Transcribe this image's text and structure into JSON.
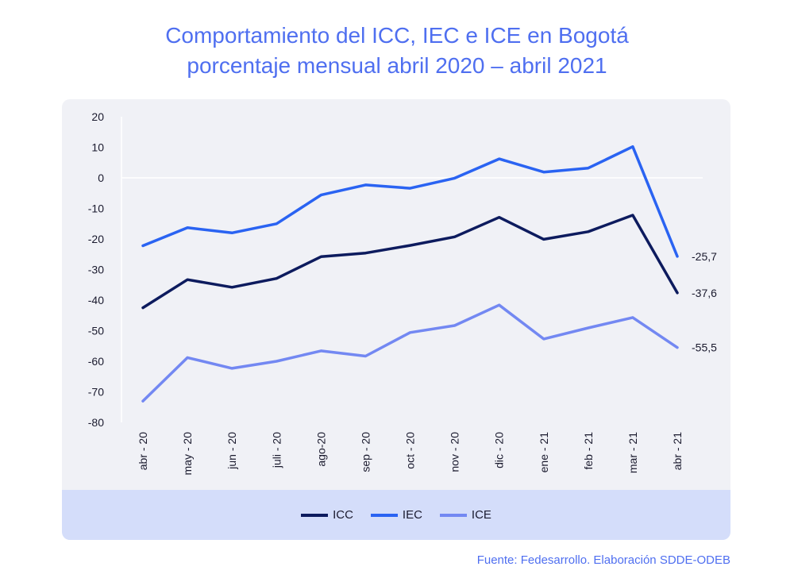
{
  "chart_data": {
    "type": "line",
    "title": "Comportamiento del ICC, IEC e ICE en Bogotá",
    "subtitle": "porcentaje mensual abril 2020 – abril 2021",
    "categories": [
      "abr - 20",
      "may - 20",
      "jun - 20",
      "juli - 20",
      "ago-20",
      "sep - 20",
      "oct - 20",
      "nov - 20",
      "dic - 20",
      "ene - 21",
      "feb - 21",
      "mar - 21",
      "abr - 21"
    ],
    "ylim": [
      -80,
      20
    ],
    "yticks": [
      20,
      10,
      0,
      -10,
      -20,
      -30,
      -40,
      -50,
      -60,
      -70,
      -80
    ],
    "ytick_labels": [
      "20",
      "10",
      "0",
      "-10",
      "-20",
      "-30",
      "-40",
      "-50",
      "-60",
      "-70",
      "-80"
    ],
    "series": [
      {
        "name": "ICC",
        "color": "#0d1b5e",
        "values": [
          -42.5,
          -33.3,
          -35.8,
          -32.9,
          -25.8,
          -24.6,
          -22.1,
          -19.3,
          -12.9,
          -20.1,
          -17.6,
          -12.2,
          -37.6
        ],
        "end_label": "-37,6"
      },
      {
        "name": "IEC",
        "color": "#2a63f2",
        "values": [
          -22.2,
          -16.3,
          -18.0,
          -15.0,
          -5.6,
          -2.3,
          -3.4,
          -0.1,
          6.2,
          1.9,
          3.2,
          10.2,
          -25.7
        ],
        "end_label": "-25,7"
      },
      {
        "name": "ICE",
        "color": "#7388f2",
        "values": [
          -73.0,
          -58.8,
          -62.3,
          -60.0,
          -56.6,
          -58.3,
          -50.6,
          -48.3,
          -41.6,
          -52.7,
          -49.1,
          -45.7,
          -55.5
        ],
        "end_label": "-55,5"
      }
    ],
    "legend_position": "bottom",
    "grid": false
  },
  "source": "Fuente: Fedesarrollo. Elaboración SDDE-ODEB"
}
